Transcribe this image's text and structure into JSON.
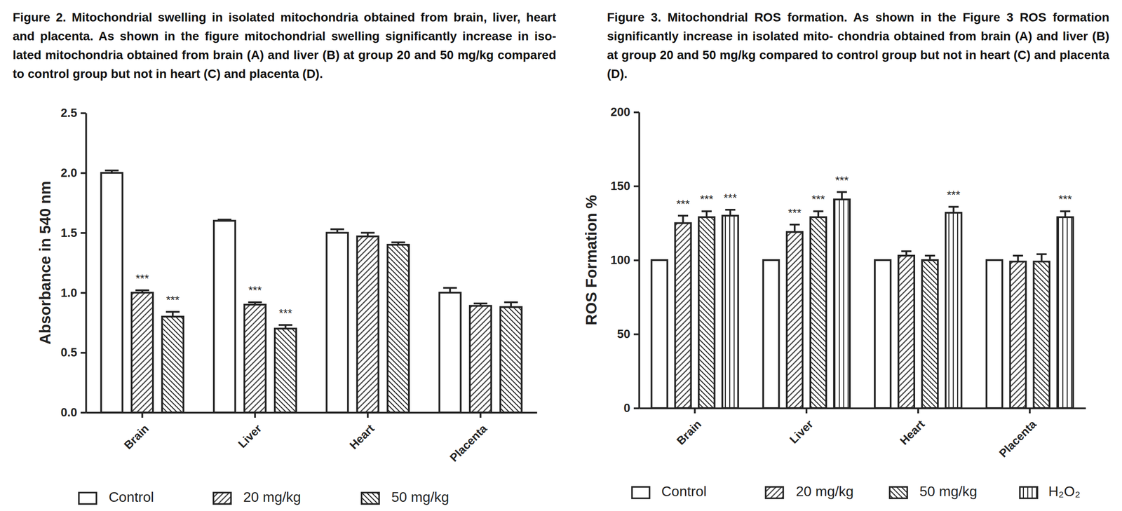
{
  "chart_data": [
    {
      "type": "bar",
      "title": "Figure 2. Mitochondrial swelling in isolated mitochondria obtained from brain, liver, heart and placenta. As shown in the figure mitochondrial swelling significantly increase in iso- lated mitochondria obtained from brain (A) and liver (B) at group 20 and 50 mg/kg compared to control group but not in heart (C) and placenta (D).",
      "y_label": "Absorbance in 540 nm",
      "categories": [
        "Brain",
        "Liver",
        "Heart",
        "Placenta"
      ],
      "series": [
        {
          "name": "Control",
          "values": [
            2.0,
            1.6,
            1.5,
            1.0
          ],
          "errors": [
            0.02,
            0.01,
            0.03,
            0.04
          ]
        },
        {
          "name": "20 mg/kg",
          "values": [
            1.0,
            0.9,
            1.47,
            0.89
          ],
          "errors": [
            0.02,
            0.02,
            0.03,
            0.02
          ],
          "annotations": [
            "***",
            "***",
            null,
            null
          ]
        },
        {
          "name": "50 mg/kg",
          "values": [
            0.8,
            0.7,
            1.4,
            0.88
          ],
          "errors": [
            0.04,
            0.03,
            0.02,
            0.04
          ],
          "annotations": [
            "***",
            "***",
            null,
            null
          ]
        }
      ],
      "ylim": [
        0,
        2.5
      ],
      "yticks": [
        {
          "value": 0,
          "label": "0.0"
        },
        0.5,
        {
          "value": 1,
          "label": "1.0"
        },
        1.5,
        {
          "value": 2,
          "label": "2.0"
        },
        2.5
      ],
      "legend": "bottom"
    },
    {
      "type": "bar",
      "title": "Figure 3. Mitochondrial ROS formation. As shown in the Figure 3 ROS formation significantly increase in isolated mito- chondria obtained from brain (A) and liver (B) at group 20 and 50 mg/kg compared to control group but not in heart (C) and placenta (D).",
      "y_label": "ROS Formation %",
      "categories": [
        "Brain",
        "Liver",
        "Heart",
        "Placenta"
      ],
      "series": [
        {
          "name": "Control",
          "values": [
            100,
            100,
            100,
            100
          ]
        },
        {
          "name": "20 mg/kg",
          "values": [
            125,
            119,
            103,
            99
          ],
          "errors": [
            5,
            5,
            3,
            4
          ],
          "annotations": [
            "***",
            "***",
            null,
            null
          ]
        },
        {
          "name": "50 mg/kg",
          "values": [
            129,
            129,
            100,
            99
          ],
          "errors": [
            4,
            4,
            3,
            5
          ],
          "annotations": [
            "***",
            "***",
            null,
            null
          ]
        },
        {
          "name": "H₂O₂",
          "values": [
            130,
            141,
            132,
            129
          ],
          "errors": [
            4,
            5,
            4,
            4
          ],
          "annotations": [
            "***",
            "***",
            "***",
            "***"
          ]
        }
      ],
      "ylim": [
        0,
        200
      ],
      "yticks": [
        0,
        50,
        100,
        150,
        200
      ],
      "legend": "bottom"
    }
  ]
}
